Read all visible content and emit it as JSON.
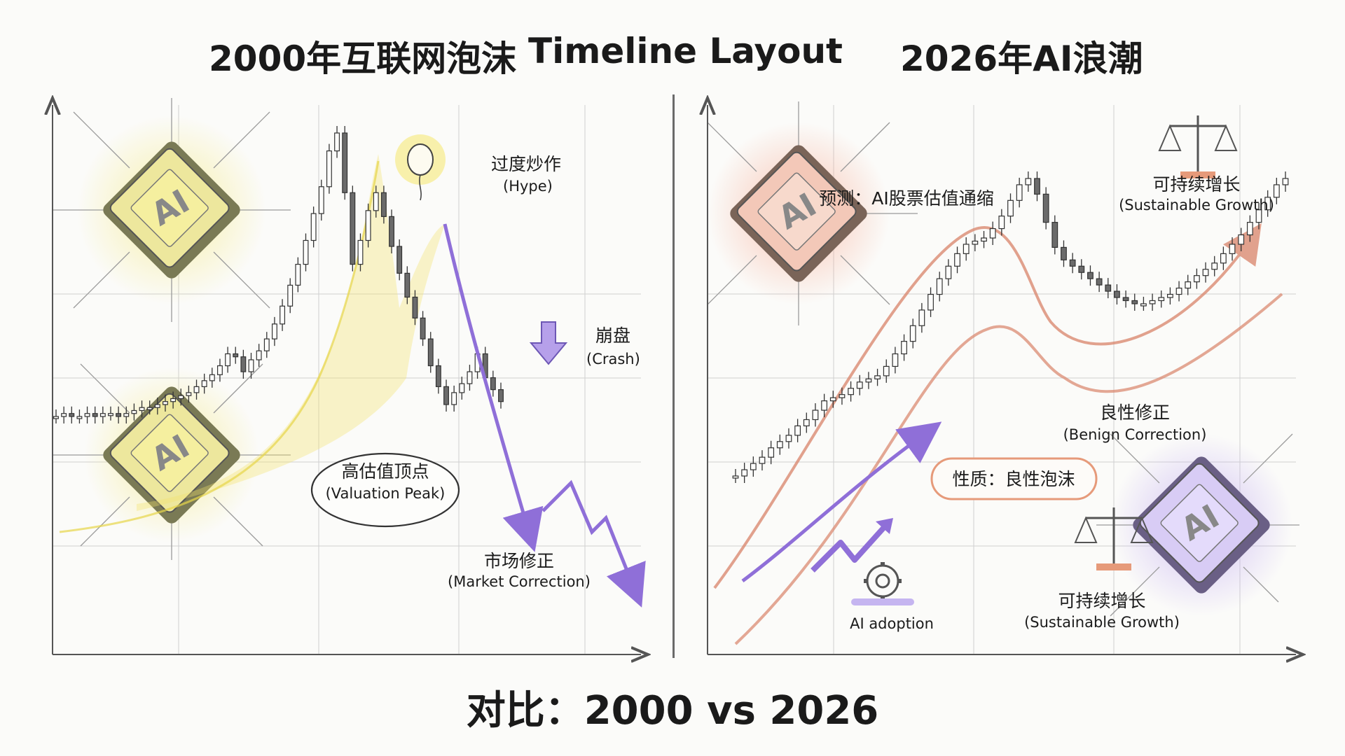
{
  "titles": {
    "left": "2000年互联网泡沫",
    "center": "Timeline Layout",
    "right": "2026年AI浪潮",
    "bottom": "对比：2000 vs 2026"
  },
  "chip_label": "AI",
  "chart_data": [
    {
      "type": "candlestick",
      "title": "2000年互联网泡沫",
      "annotations": {
        "hype_zh": "过度炒作",
        "hype_en": "(Hype)",
        "crash_zh": "崩盘",
        "crash_en": "(Crash)",
        "peak_zh": "高估值顶点",
        "peak_en": "(Valuation Peak)",
        "correction_zh": "市场修正",
        "correction_en": "(Market Correction)"
      },
      "colors": {
        "hype_band": "#f3e36a",
        "trend": "#8f6fd8",
        "chip_glow": "#f4ea8a"
      },
      "values": [
        5,
        6,
        5,
        5,
        6,
        5,
        6,
        6,
        5,
        6,
        7,
        8,
        8,
        9,
        10,
        11,
        12,
        13,
        15,
        17,
        19,
        22,
        26,
        25,
        20,
        24,
        27,
        31,
        36,
        42,
        49,
        56,
        64,
        73,
        82,
        94,
        100,
        80,
        56,
        64,
        74,
        80,
        72,
        62,
        53,
        45,
        38,
        31,
        22,
        15,
        9,
        13,
        16,
        20,
        26,
        18,
        14,
        10
      ]
    },
    {
      "type": "candlestick",
      "title": "2026年AI浪潮",
      "annotations": {
        "forecast": "预测：AI股票估值通缩",
        "sustain_top_zh": "可持续增长",
        "sustain_top_en": "(Sustainable Growth)",
        "benign_zh": "良性修正",
        "benign_en": "(Benign Correction)",
        "nature": "性质：良性泡沫",
        "adoption": "AI adoption",
        "sustain_bottom_zh": "可持续增长",
        "sustain_bottom_en": "(Sustainable Growth)"
      },
      "colors": {
        "channel": "#e69a7a",
        "trend": "#8f6fd8",
        "chip_glow_top": "#f7b49f",
        "chip_glow_bottom": "#c6b2f1"
      },
      "values": [
        5,
        7,
        9,
        11,
        14,
        16,
        18,
        21,
        23,
        26,
        29,
        30,
        31,
        33,
        35,
        36,
        37,
        40,
        44,
        48,
        53,
        58,
        63,
        68,
        72,
        76,
        79,
        80,
        81,
        84,
        88,
        93,
        98,
        100,
        95,
        86,
        78,
        74,
        72,
        70,
        68,
        66,
        64,
        62,
        61,
        60,
        60,
        61,
        62,
        63,
        65,
        67,
        69,
        71,
        73,
        76,
        79,
        82,
        86,
        90,
        94,
        98,
        100
      ]
    }
  ]
}
